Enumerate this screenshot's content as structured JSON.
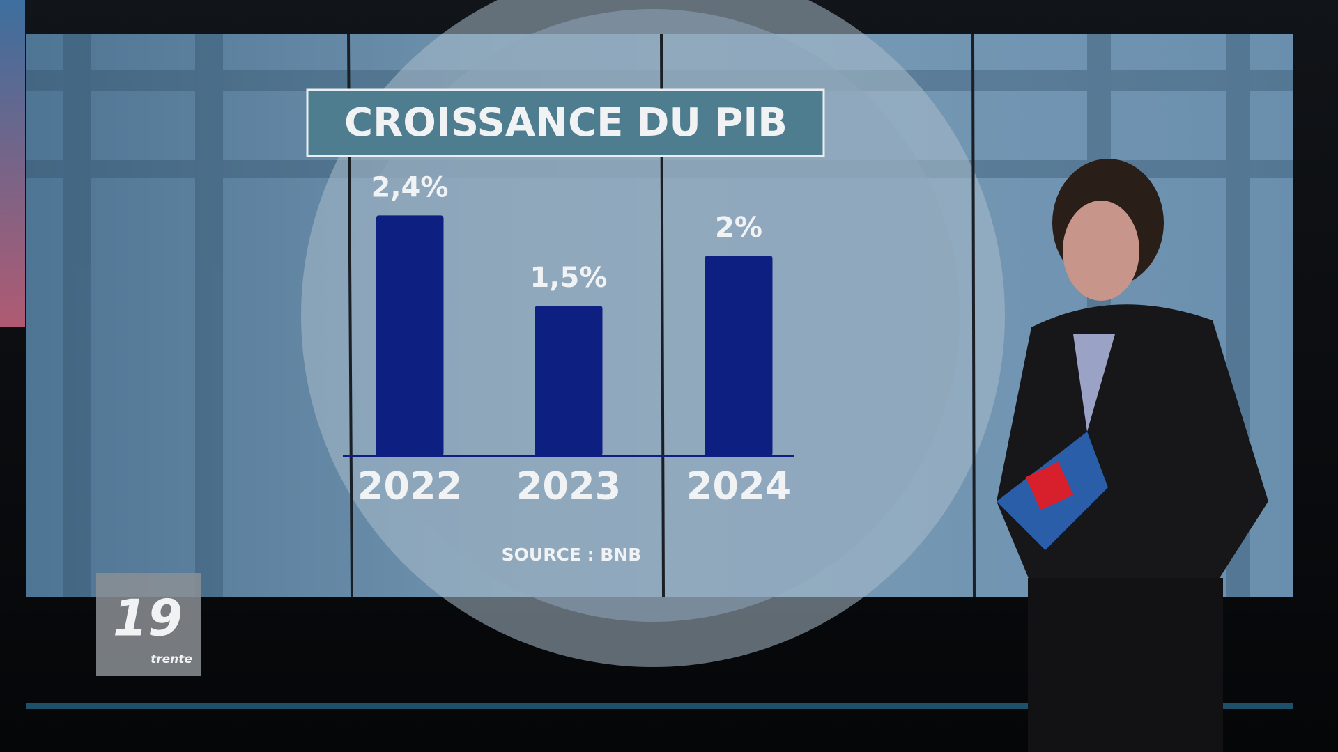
{
  "chart_data": {
    "type": "bar",
    "title": "CROISSANCE DU PIB",
    "categories": [
      "2022",
      "2023",
      "2024"
    ],
    "values": [
      2.4,
      1.5,
      2
    ],
    "value_labels": [
      "2,4%",
      "1,5%",
      "2%"
    ],
    "color": "#0e1f82",
    "source": "SOURCE : BNB"
  },
  "logo": {
    "number": "19",
    "subtitle": "trente"
  }
}
